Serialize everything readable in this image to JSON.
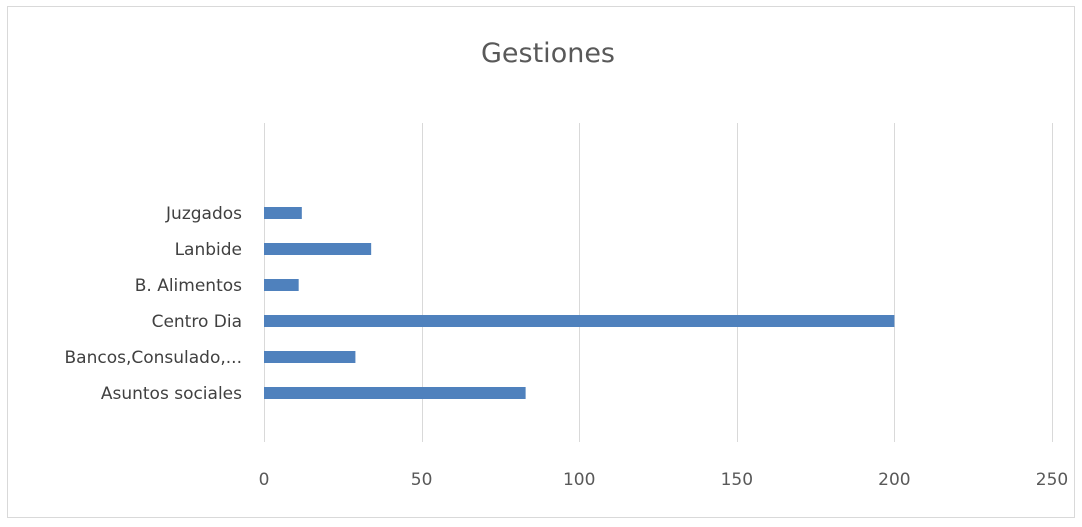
{
  "chart_data": {
    "type": "bar",
    "orientation": "horizontal",
    "title": "Gestiones",
    "xlabel": "",
    "ylabel": "",
    "categories": [
      "Asuntos sociales",
      "Bancos,Consulado,...",
      "Centro Dia",
      "B. Alimentos",
      "Lanbide",
      "Juzgados"
    ],
    "values": [
      83,
      29,
      200,
      11,
      34,
      12
    ],
    "xlim": [
      0,
      250
    ],
    "xticks": [
      "0",
      "50",
      "100",
      "150",
      "200",
      "250"
    ],
    "grid": true,
    "legend": "none",
    "bar_color": "#4f81bd",
    "grid_color": "#d9d9d9"
  }
}
